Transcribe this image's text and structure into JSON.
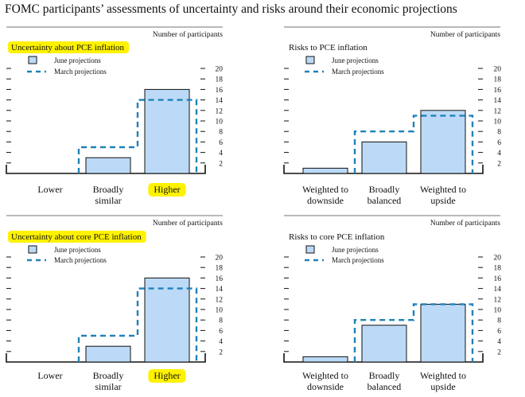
{
  "page_title": "FOMC participants’ assessments of uncertainty and risks around their economic projections",
  "colors": {
    "june_fill": "#bcdaf7",
    "june_stroke": "#111111",
    "march_dash": "#1f82b8",
    "highlight": "#fff200"
  },
  "chart_data": [
    {
      "type": "bar",
      "title": "Uncertainty about PCE inflation",
      "title_highlighted": true,
      "ylabel": "Number of participants",
      "ylim": [
        0,
        20
      ],
      "yticks": [
        "2",
        "4",
        "6",
        "8",
        "10",
        "12",
        "14",
        "16",
        "18",
        "20"
      ],
      "legend_position": "top-left",
      "categories": [
        [
          "Lower"
        ],
        [
          "Broadly",
          "similar"
        ],
        [
          "Higher"
        ]
      ],
      "highlighted_categories": [
        2
      ],
      "series": [
        {
          "name": "June projections",
          "style": "bar",
          "values": [
            0,
            3,
            16
          ]
        },
        {
          "name": "March projections",
          "style": "dashed-step",
          "values": [
            0,
            5,
            14
          ]
        }
      ]
    },
    {
      "type": "bar",
      "title": "Risks to PCE inflation",
      "title_highlighted": false,
      "ylabel": "Number of participants",
      "ylim": [
        0,
        20
      ],
      "yticks": [
        "2",
        "4",
        "6",
        "8",
        "10",
        "12",
        "14",
        "16",
        "18",
        "20"
      ],
      "legend_position": "top-left",
      "categories": [
        [
          "Weighted to",
          "downside"
        ],
        [
          "Broadly",
          "balanced"
        ],
        [
          "Weighted to",
          "upside"
        ]
      ],
      "highlighted_categories": [],
      "series": [
        {
          "name": "June projections",
          "style": "bar",
          "values": [
            1,
            6,
            12
          ]
        },
        {
          "name": "March projections",
          "style": "dashed-step",
          "values": [
            0,
            8,
            11
          ]
        }
      ]
    },
    {
      "type": "bar",
      "title": "Uncertainty about core PCE inflation",
      "title_highlighted": true,
      "ylabel": "Number of participants",
      "ylim": [
        0,
        20
      ],
      "yticks": [
        "2",
        "4",
        "6",
        "8",
        "10",
        "12",
        "14",
        "16",
        "18",
        "20"
      ],
      "legend_position": "top-left",
      "categories": [
        [
          "Lower"
        ],
        [
          "Broadly",
          "similar"
        ],
        [
          "Higher"
        ]
      ],
      "highlighted_categories": [
        2
      ],
      "series": [
        {
          "name": "June projections",
          "style": "bar",
          "values": [
            0,
            3,
            16
          ]
        },
        {
          "name": "March projections",
          "style": "dashed-step",
          "values": [
            0,
            5,
            14
          ]
        }
      ]
    },
    {
      "type": "bar",
      "title": "Risks to core PCE inflation",
      "title_highlighted": false,
      "ylabel": "Number of participants",
      "ylim": [
        0,
        20
      ],
      "yticks": [
        "2",
        "4",
        "6",
        "8",
        "10",
        "12",
        "14",
        "16",
        "18",
        "20"
      ],
      "legend_position": "top-left",
      "categories": [
        [
          "Weighted to",
          "downside"
        ],
        [
          "Broadly",
          "balanced"
        ],
        [
          "Weighted to",
          "upside"
        ]
      ],
      "highlighted_categories": [],
      "series": [
        {
          "name": "June projections",
          "style": "bar",
          "values": [
            1,
            7,
            11
          ]
        },
        {
          "name": "March projections",
          "style": "dashed-step",
          "values": [
            0,
            8,
            11
          ]
        }
      ]
    }
  ]
}
